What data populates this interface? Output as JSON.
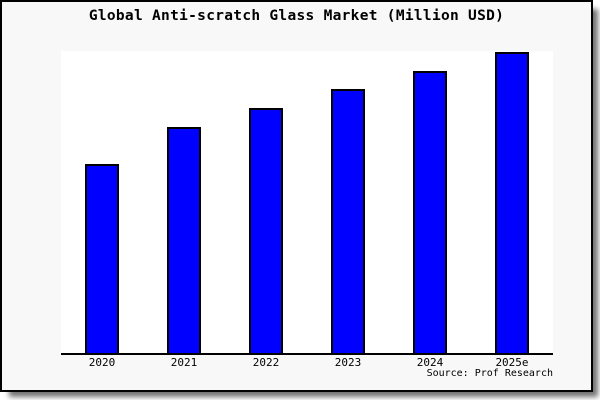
{
  "chart": {
    "title": "Global Anti-scratch Glass Market (Million USD)",
    "source": "Source: Prof Research"
  },
  "colors": {
    "bar_fill": "#0000ff",
    "bar_border": "#000000",
    "frame_background": "#f8f8f8",
    "frame_border": "#000000",
    "plot_background": "#ffffff",
    "axis_line": "#000000",
    "text": "#000000"
  },
  "chart_data": {
    "type": "bar",
    "title": "Global Anti-scratch Glass Market (Million USD)",
    "categories": [
      "2020",
      "2021",
      "2022",
      "2023",
      "2024",
      "2025e"
    ],
    "values_relative_pct": [
      62.6,
      74.8,
      81.1,
      87.4,
      93.4,
      99.7
    ],
    "xlabel": "",
    "ylabel": "",
    "y_axis_ticks_visible": false,
    "gridlines": false,
    "legend": false,
    "bar_color": "#0000ff",
    "source_annotation": "Source: Prof Research",
    "note": "No numeric y-axis is shown in the figure; values are bar heights as percent of plot height"
  }
}
